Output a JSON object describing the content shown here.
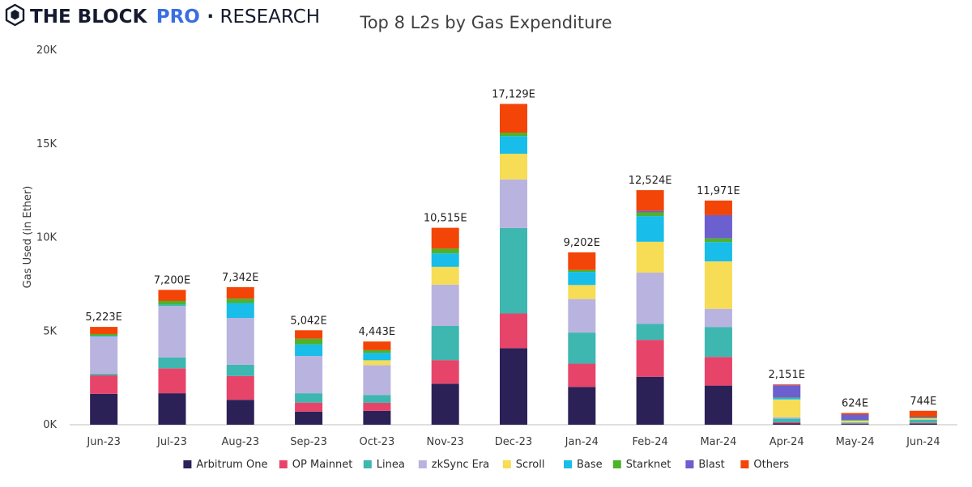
{
  "brand": {
    "name": "THE BLOCK",
    "pro": "PRO",
    "separator": "·",
    "section": "RESEARCH"
  },
  "colors": {
    "brand_dark": "#151B2E",
    "brand_blue": "#3A6FE0",
    "axis": "#bfbfbf"
  },
  "chart_data": {
    "type": "bar",
    "stacked": true,
    "title": "Top 8 L2s by Gas Expenditure",
    "xlabel": "",
    "ylabel": "Gas Used (in Ether)",
    "ylim": [
      0,
      20000
    ],
    "yticks": [
      0,
      5000,
      10000,
      15000,
      20000
    ],
    "ytick_labels": [
      "0K",
      "5K",
      "10K",
      "15K",
      "20K"
    ],
    "grid": false,
    "legend_position": "bottom",
    "categories": [
      "Jun-23",
      "Jul-23",
      "Aug-23",
      "Sep-23",
      "Oct-23",
      "Nov-23",
      "Dec-23",
      "Jan-24",
      "Feb-24",
      "Mar-24",
      "Apr-24",
      "May-24",
      "Jun-24"
    ],
    "totals": [
      5223,
      7200,
      7342,
      5042,
      4443,
      10515,
      17129,
      9202,
      12524,
      11971,
      2151,
      624,
      744
    ],
    "total_labels": [
      "5,223E",
      "7,200E",
      "7,342E",
      "5,042E",
      "4,443E",
      "10,515E",
      "17,129E",
      "9,202E",
      "12,524E",
      "11,971E",
      "2,151E",
      "624E",
      "744E"
    ],
    "series": [
      {
        "name": "Arbitrum One",
        "color": "#2B2157",
        "values": [
          1650,
          1680,
          1330,
          700,
          740,
          2190,
          4090,
          2020,
          2560,
          2090,
          80,
          40,
          60
        ]
      },
      {
        "name": "OP Mainnet",
        "color": "#E7446A",
        "values": [
          990,
          1330,
          1270,
          480,
          430,
          1260,
          1850,
          1240,
          1970,
          1530,
          50,
          30,
          40
        ]
      },
      {
        "name": "Linea",
        "color": "#3DB7B0",
        "values": [
          90,
          580,
          600,
          500,
          420,
          1820,
          4560,
          1660,
          860,
          1600,
          200,
          50,
          160
        ]
      },
      {
        "name": "zkSync Era",
        "color": "#B9B3E0",
        "values": [
          1980,
          2750,
          2500,
          1990,
          1590,
          2210,
          2600,
          1790,
          2730,
          970,
          70,
          20,
          20
        ]
      },
      {
        "name": "Scroll",
        "color": "#F7DC55",
        "values": [
          0,
          0,
          0,
          0,
          260,
          950,
          1370,
          750,
          1650,
          2530,
          950,
          80,
          60
        ]
      },
      {
        "name": "Base",
        "color": "#18BDEA",
        "values": [
          40,
          60,
          800,
          620,
          400,
          720,
          940,
          700,
          1370,
          1030,
          80,
          20,
          30
        ]
      },
      {
        "name": "Starknet",
        "color": "#4DB32A",
        "values": [
          90,
          210,
          230,
          300,
          140,
          250,
          180,
          100,
          200,
          200,
          20,
          20,
          20
        ]
      },
      {
        "name": "Blast",
        "color": "#6C5FCF",
        "values": [
          0,
          0,
          0,
          0,
          0,
          0,
          0,
          0,
          80,
          1240,
          660,
          280,
          20
        ]
      },
      {
        "name": "Others",
        "color": "#F24507",
        "values": [
          383,
          590,
          612,
          452,
          463,
          1115,
          1539,
          942,
          1104,
          781,
          41,
          84,
          334
        ]
      }
    ]
  }
}
